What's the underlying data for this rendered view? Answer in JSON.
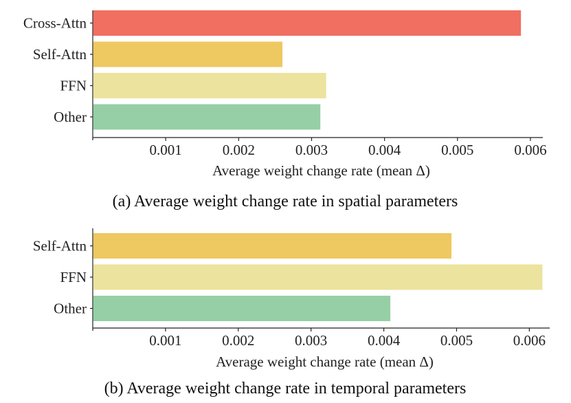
{
  "chart_data": [
    {
      "type": "bar",
      "orientation": "horizontal",
      "categories": [
        "Cross-Attn",
        "Self-Attn",
        "FFN",
        "Other"
      ],
      "values": [
        0.00587,
        0.0026,
        0.0032,
        0.00312
      ],
      "colors": [
        "#f06f61",
        "#eec861",
        "#ece39e",
        "#96cfa6"
      ],
      "xlabel": "Average weight change rate (mean Δ)",
      "caption": "(a) Average weight change rate in spatial parameters",
      "xticks": [
        0.001,
        0.002,
        0.003,
        0.004,
        0.005,
        0.006
      ],
      "xtick_labels": [
        "0.001",
        "0.002",
        "0.003",
        "0.004",
        "0.005",
        "0.006"
      ],
      "xlim": [
        0,
        0.00617
      ],
      "grid": false
    },
    {
      "type": "bar",
      "orientation": "horizontal",
      "categories": [
        "Self-Attn",
        "FFN",
        "Other"
      ],
      "values": [
        0.00493,
        0.00618,
        0.00409
      ],
      "colors": [
        "#eec861",
        "#ece39e",
        "#96cfa6"
      ],
      "xlabel": "Average weight change rate (mean Δ)",
      "caption": "(b) Average weight change rate in temporal parameters",
      "xticks": [
        0.001,
        0.002,
        0.003,
        0.004,
        0.005,
        0.006
      ],
      "xtick_labels": [
        "0.001",
        "0.002",
        "0.003",
        "0.004",
        "0.005",
        "0.006"
      ],
      "xlim": [
        0,
        0.00628
      ],
      "grid": false
    }
  ]
}
